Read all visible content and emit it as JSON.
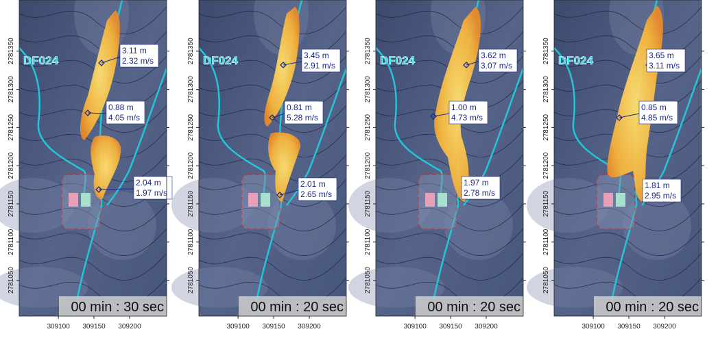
{
  "axes": {
    "xlim": [
      309045,
      309252
    ],
    "ylim": [
      2781003,
      2781417
    ],
    "xticks": [
      309100,
      309150,
      309200
    ],
    "yticks": [
      2781050,
      2781100,
      2781150,
      2781200,
      2781250,
      2781300,
      2781350
    ]
  },
  "panels": [
    {
      "channel_label": "DF024",
      "time": "00 min : 30 sec",
      "points": [
        {
          "depth": "3.11 m",
          "velocity": "2.32 m/s"
        },
        {
          "depth": "0.88 m",
          "velocity": "4.05 m/s"
        },
        {
          "depth": "2.04 m",
          "velocity": "1.97 m/s"
        }
      ]
    },
    {
      "channel_label": "DF024",
      "time": "00 min : 20 sec",
      "points": [
        {
          "depth": "3.45 m",
          "velocity": "2.91 m/s"
        },
        {
          "depth": "0.81 m",
          "velocity": "5.28 m/s"
        },
        {
          "depth": "2.01 m",
          "velocity": "2.65 m/s"
        }
      ]
    },
    {
      "channel_label": "DF024",
      "time": "00 min : 20 sec",
      "points": [
        {
          "depth": "3.62 m",
          "velocity": "3.07 m/s"
        },
        {
          "depth": "1.00 m",
          "velocity": "4.73 m/s"
        },
        {
          "depth": "1.97 m",
          "velocity": "2.78 m/s"
        }
      ]
    },
    {
      "channel_label": "DF024",
      "time": "00 min : 20 sec",
      "points": [
        {
          "depth": "3.65 m",
          "velocity": "3.11 m/s"
        },
        {
          "depth": "0.85 m",
          "velocity": "4.85 m/s"
        },
        {
          "depth": "1.81 m",
          "velocity": "2.95 m/s"
        }
      ]
    }
  ]
}
